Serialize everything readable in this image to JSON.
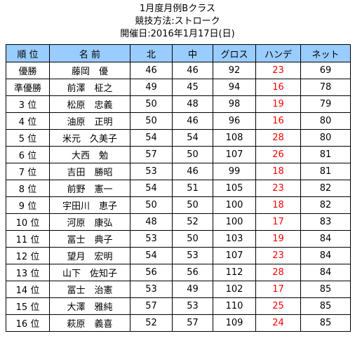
{
  "title": {
    "line1": "1月度月例Bクラス",
    "line2": "競技方法:ストローク",
    "line3": "開催日:2016年1月17日(日)"
  },
  "table": {
    "headers": [
      "順 位",
      "名 前",
      "北",
      "中",
      "グロス",
      "ハンデ",
      "ネット"
    ],
    "header_bg": "#99ccff",
    "handicap_color": "#ff0000",
    "rows": [
      [
        "優勝",
        "藤岡　優",
        "46",
        "46",
        "92",
        "23",
        "69"
      ],
      [
        "準優勝",
        "前澤　柾之",
        "49",
        "45",
        "94",
        "16",
        "78"
      ],
      [
        "3 位",
        "松原　忠義",
        "50",
        "48",
        "98",
        "19",
        "79"
      ],
      [
        "4 位",
        "油原　正明",
        "50",
        "46",
        "96",
        "16",
        "80"
      ],
      [
        "5 位",
        "米元　久美子",
        "54",
        "54",
        "108",
        "28",
        "80"
      ],
      [
        "6 位",
        "大西　勉",
        "57",
        "50",
        "107",
        "26",
        "81"
      ],
      [
        "7 位",
        "吉田　勝昭",
        "53",
        "46",
        "99",
        "18",
        "81"
      ],
      [
        "8 位",
        "前野　憲一",
        "54",
        "51",
        "105",
        "23",
        "82"
      ],
      [
        "9 位",
        "宇田川　恵子",
        "50",
        "50",
        "100",
        "18",
        "82"
      ],
      [
        "10 位",
        "河原　康弘",
        "48",
        "52",
        "100",
        "17",
        "83"
      ],
      [
        "11 位",
        "冨士　典子",
        "53",
        "50",
        "103",
        "19",
        "84"
      ],
      [
        "12 位",
        "望月　宏明",
        "54",
        "53",
        "107",
        "23",
        "84"
      ],
      [
        "13 位",
        "山下　佐知子",
        "56",
        "56",
        "112",
        "28",
        "84"
      ],
      [
        "14 位",
        "冨士　治憲",
        "53",
        "49",
        "102",
        "17",
        "85"
      ],
      [
        "15 位",
        "大澤　雅純",
        "57",
        "53",
        "110",
        "25",
        "85"
      ],
      [
        "16 位",
        "萩原　義喜",
        "52",
        "57",
        "109",
        "24",
        "85"
      ]
    ]
  }
}
